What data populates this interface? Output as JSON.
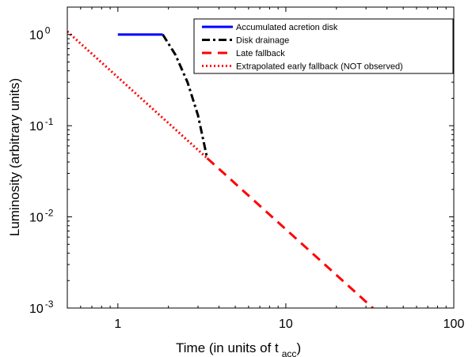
{
  "chart_data": {
    "type": "line",
    "xlabel": "Time (in units of t",
    "xlabel_sub": "acc",
    "xlabel_end": ")",
    "ylabel": "Luminosity (arbitrary units)",
    "xscale": "log",
    "yscale": "log",
    "xlim": [
      0.5,
      100
    ],
    "ylim": [
      0.001,
      2
    ],
    "grid": false,
    "legend_position": "top-right",
    "x_ticks": [
      {
        "value": 1,
        "label": "1"
      },
      {
        "value": 10,
        "label": "10"
      },
      {
        "value": 100,
        "label": "100"
      }
    ],
    "y_ticks": [
      {
        "value": 1,
        "base": "10",
        "exp": "0"
      },
      {
        "value": 0.1,
        "base": "10",
        "exp": "-1"
      },
      {
        "value": 0.01,
        "base": "10",
        "exp": "-2"
      },
      {
        "value": 0.001,
        "base": "10",
        "exp": "-3"
      }
    ],
    "series": [
      {
        "name": "Accumulated acretion disk",
        "color": "#0000ff",
        "style": "solid",
        "points": [
          [
            1,
            1
          ],
          [
            1.85,
            1
          ]
        ]
      },
      {
        "name": "Disk drainage",
        "color": "#000000",
        "style": "dashdot",
        "points": [
          [
            1.85,
            1
          ],
          [
            2.2,
            0.6
          ],
          [
            2.6,
            0.3
          ],
          [
            3.0,
            0.13
          ],
          [
            3.4,
            0.044
          ]
        ]
      },
      {
        "name": "Late fallback",
        "color": "#ff0000",
        "style": "dashed",
        "points": [
          [
            3.4,
            0.044
          ],
          [
            33,
            0.001
          ]
        ]
      },
      {
        "name": "Extrapolated early fallback (NOT observed)",
        "color": "#ff0000",
        "style": "dotted",
        "points": [
          [
            0.5,
            1.08
          ],
          [
            3.4,
            0.044
          ]
        ]
      }
    ]
  }
}
